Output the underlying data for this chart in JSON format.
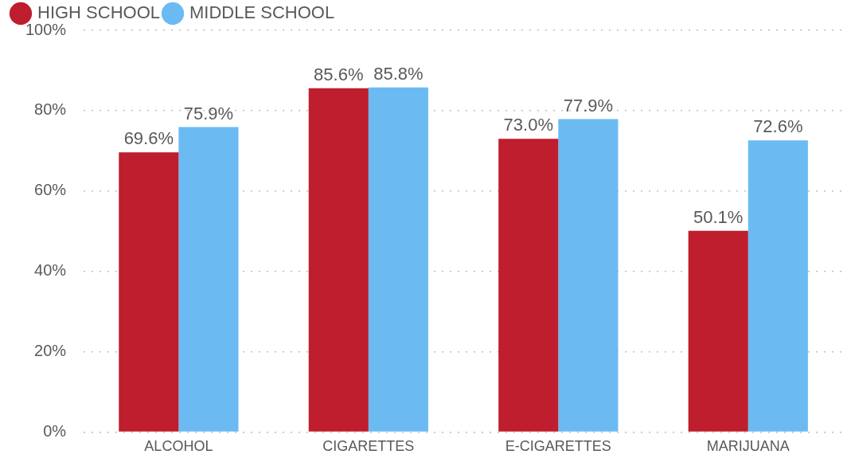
{
  "chart_data": {
    "type": "bar",
    "categories": [
      "ALCOHOL",
      "CIGARETTES",
      "E-CIGARETTES",
      "MARIJUANA"
    ],
    "series": [
      {
        "name": "HIGH SCHOOL",
        "color": "#be1e2d",
        "values": [
          69.6,
          85.6,
          73.0,
          50.1
        ],
        "value_labels": [
          "69.6%",
          "85.6%",
          "73.0%",
          "50.1%"
        ]
      },
      {
        "name": "MIDDLE SCHOOL",
        "color": "#6bbbf2",
        "values": [
          75.9,
          85.8,
          77.9,
          72.6
        ],
        "value_labels": [
          "75.9%",
          "85.8%",
          "77.9%",
          "72.6%"
        ]
      }
    ],
    "ylim": [
      0,
      100
    ],
    "yticks": [
      {
        "value": 0,
        "label": "0%"
      },
      {
        "value": 20,
        "label": "20%"
      },
      {
        "value": 40,
        "label": "40%"
      },
      {
        "value": 60,
        "label": "60%"
      },
      {
        "value": 80,
        "label": "80%"
      },
      {
        "value": 100,
        "label": "100%"
      }
    ],
    "grid": "y",
    "legend": "top left"
  }
}
